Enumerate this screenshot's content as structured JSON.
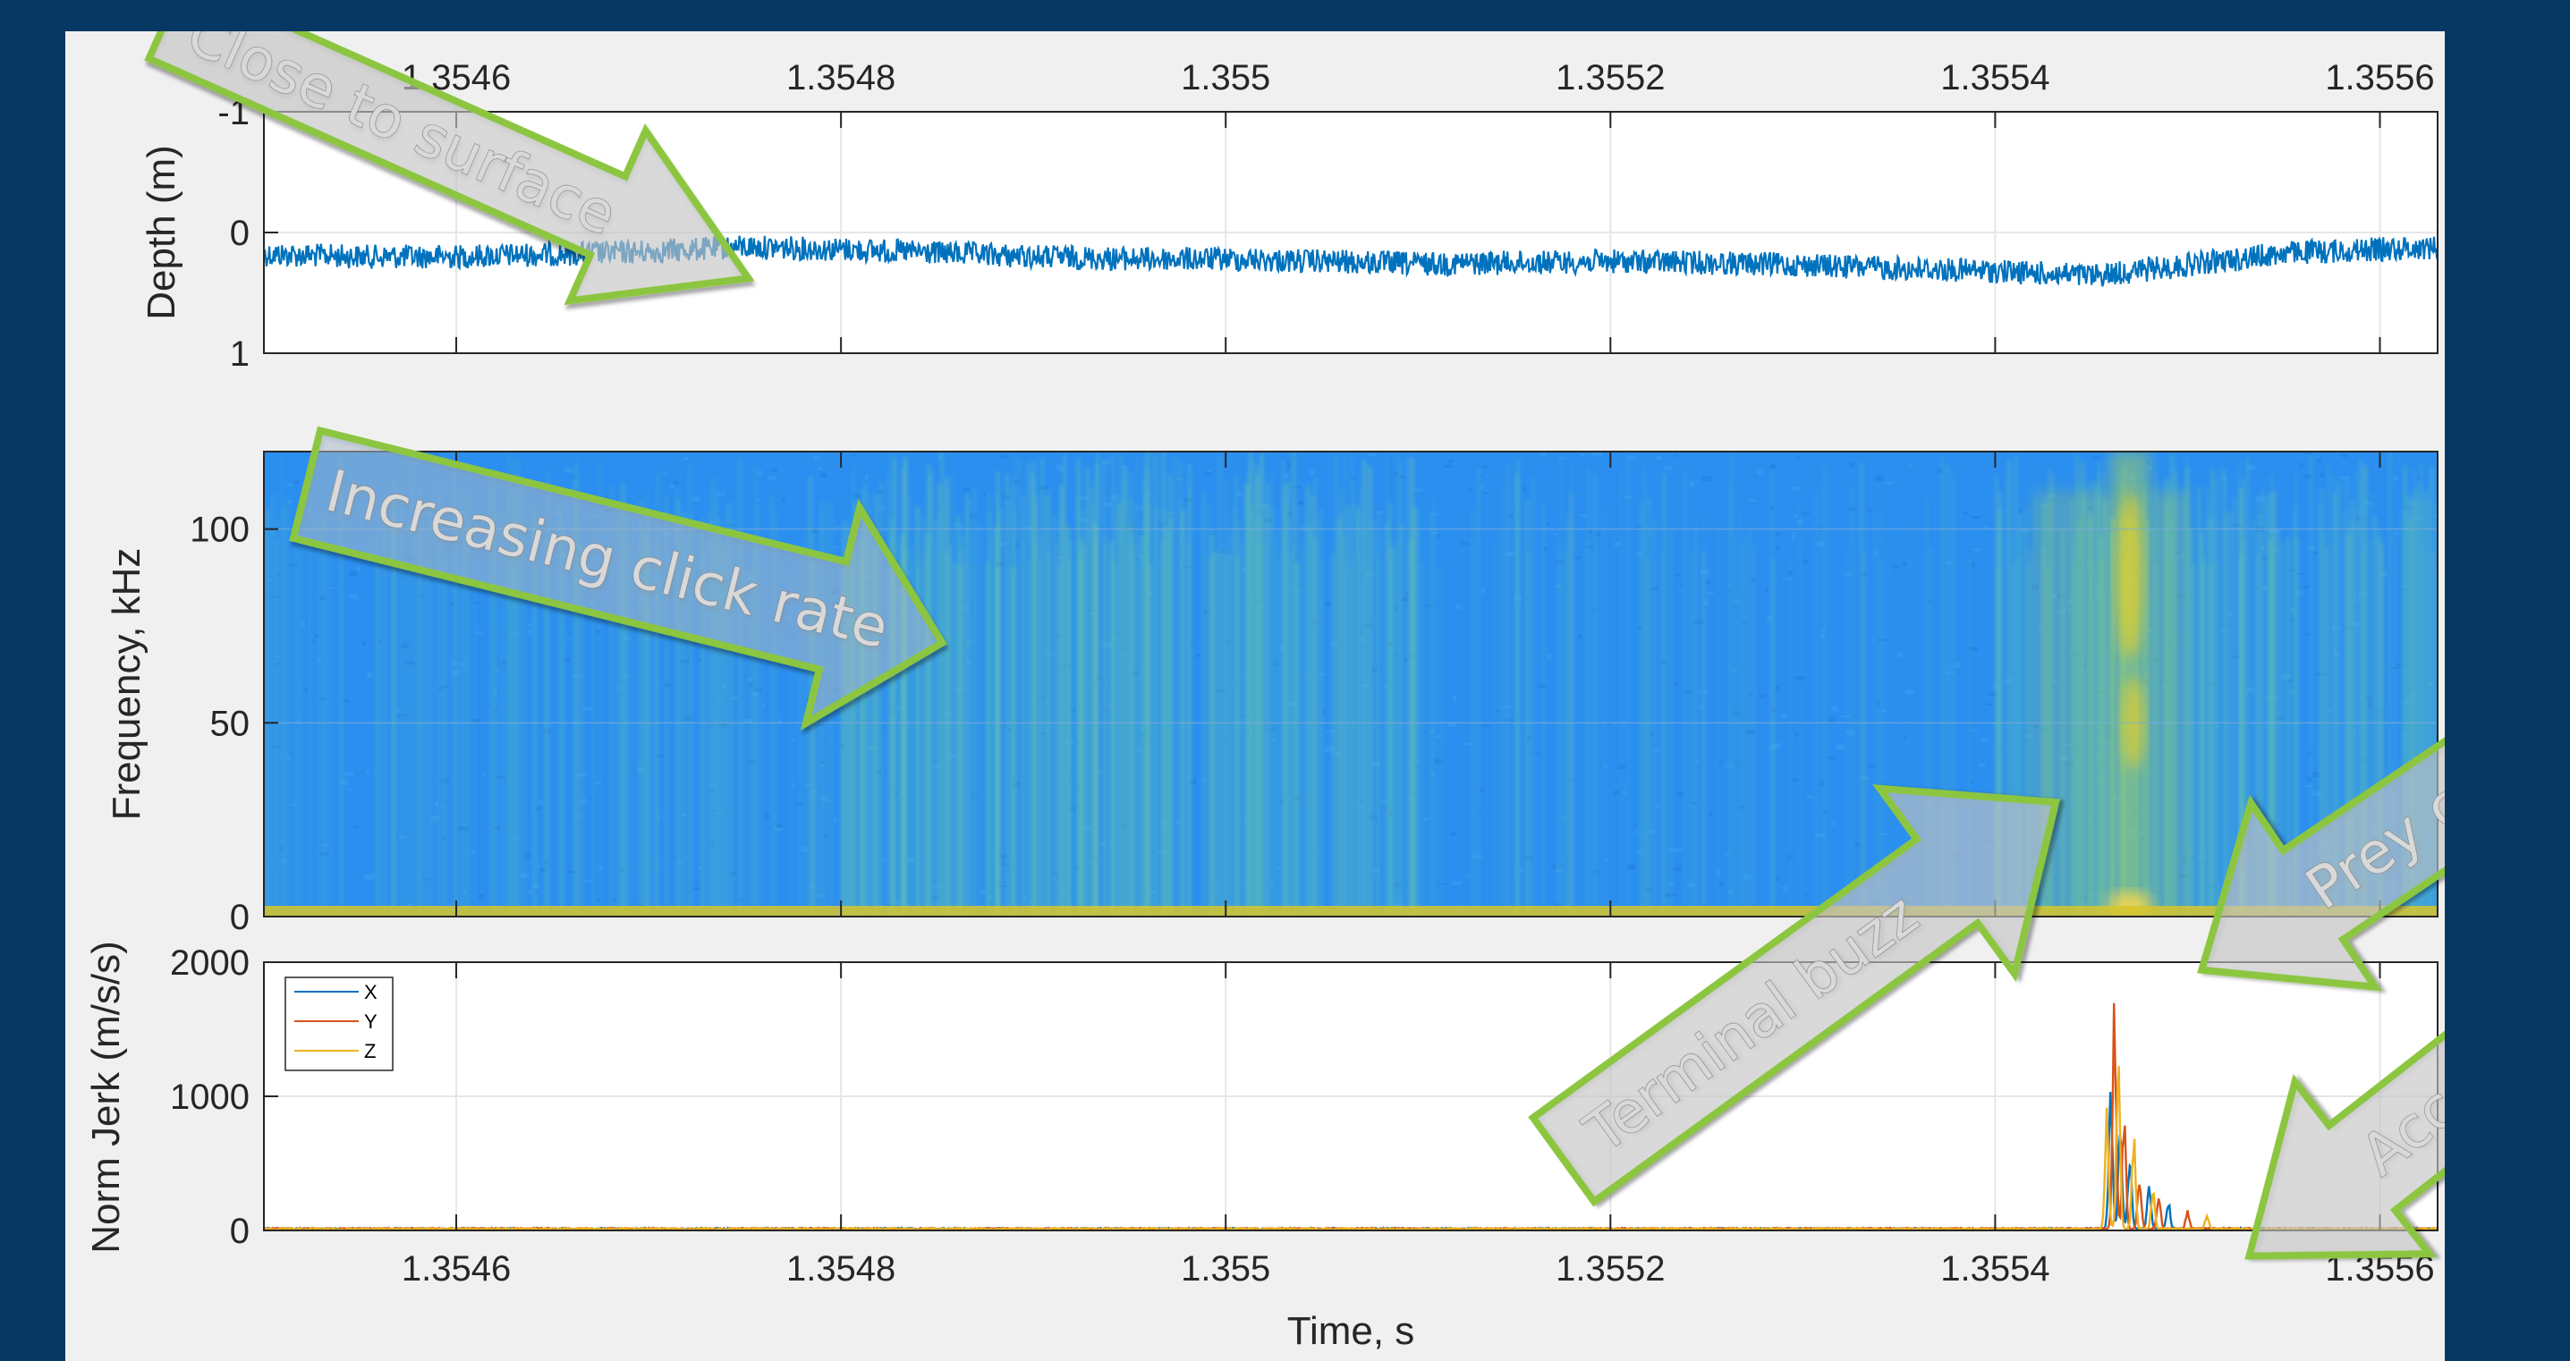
{
  "colors": {
    "background": "#073763",
    "figure": "#f0f0f0",
    "axes_bg": "#ffffff",
    "grid": "#e6e6e6",
    "axis": "#262626",
    "depth_line": "#0072bd",
    "series_x": "#0072bd",
    "series_y": "#d95319",
    "series_z": "#edb120",
    "spec_low": "#1e90f0",
    "spec_high": "#f2d21a",
    "annotation_stroke": "#8cc63f"
  },
  "chart_data": [
    {
      "id": "depth",
      "type": "line",
      "title": "",
      "xlabel": "",
      "ylabel": "Depth (m)",
      "xlim": [
        1.3545,
        1.35563
      ],
      "ylim": [
        -1,
        1
      ],
      "y_reversed": true,
      "x_ticks": [
        1.3546,
        1.3548,
        1.355,
        1.3552,
        1.3554,
        1.3556
      ],
      "x_tick_labels": [
        "1.3546",
        "1.3548",
        "1.355",
        "1.3552",
        "1.3554",
        "1.3556"
      ],
      "x_ticks_on_top": true,
      "y_ticks": [
        -1,
        0,
        1
      ],
      "y_tick_labels": [
        "-1",
        "0",
        "1"
      ],
      "grid": true,
      "series": [
        {
          "x": [
            1.3545,
            1.35455,
            1.3546,
            1.35465,
            1.3547,
            1.35475,
            1.3548,
            1.35485,
            1.3549,
            1.35495,
            1.355,
            1.35505,
            1.3551,
            1.35515,
            1.3552,
            1.35525,
            1.3553,
            1.35535,
            1.3554,
            1.35545,
            1.3555,
            1.35555,
            1.35563
          ],
          "y": [
            0.18,
            0.2,
            0.2,
            0.18,
            0.16,
            0.12,
            0.14,
            0.17,
            0.2,
            0.22,
            0.22,
            0.24,
            0.26,
            0.25,
            0.24,
            0.25,
            0.27,
            0.3,
            0.32,
            0.36,
            0.27,
            0.17,
            0.12
          ],
          "noise": 0.1
        }
      ]
    },
    {
      "id": "spectrogram",
      "type": "heatmap",
      "title": "",
      "xlabel": "",
      "ylabel": "Frequency, kHz",
      "xlim": [
        1.3545,
        1.35563
      ],
      "ylim": [
        0,
        120
      ],
      "y_ticks": [
        0,
        50,
        100
      ],
      "y_tick_labels": [
        "0",
        "50",
        "100"
      ],
      "colormap": "parula",
      "click_density": [
        {
          "x0": 1.3545,
          "x1": 1.3548,
          "level": 0.25
        },
        {
          "x0": 1.3548,
          "x1": 1.35502,
          "level": 0.6
        },
        {
          "x0": 1.35502,
          "x1": 1.3551,
          "level": 0.5
        },
        {
          "x0": 1.3551,
          "x1": 1.35523,
          "level": 0.18
        },
        {
          "x0": 1.35523,
          "x1": 1.3554,
          "level": 0.12
        },
        {
          "x0": 1.3554,
          "x1": 1.35563,
          "level": 0.5
        }
      ],
      "broadband_events": [
        {
          "x0": 1.35546,
          "x1": 1.35548,
          "f_max": 120,
          "intensity": 1.0
        },
        {
          "x0": 1.35542,
          "x1": 1.35546,
          "f_max": 110,
          "intensity": 0.5
        },
        {
          "x0": 1.35548,
          "x1": 1.3555,
          "f_max": 110,
          "intensity": 0.55
        }
      ]
    },
    {
      "id": "jerk",
      "type": "line",
      "title": "",
      "xlabel": "Time, s",
      "ylabel": "Norm Jerk (m/s/s)",
      "xlim": [
        1.3545,
        1.35563
      ],
      "ylim": [
        0,
        2000
      ],
      "x_ticks": [
        1.3546,
        1.3548,
        1.355,
        1.3552,
        1.3554,
        1.3556
      ],
      "x_tick_labels": [
        "1.3546",
        "1.3548",
        "1.355",
        "1.3552",
        "1.3554",
        "1.3556"
      ],
      "y_ticks": [
        0,
        1000,
        2000
      ],
      "y_tick_labels": [
        "0",
        "1000",
        "2000"
      ],
      "grid": true,
      "legend": "top-left",
      "series": [
        {
          "name": "X",
          "peaks": [
            {
              "x": 1.35546,
              "y": 1050
            },
            {
              "x": 1.355465,
              "y": 820
            },
            {
              "x": 1.35547,
              "y": 620
            },
            {
              "x": 1.35548,
              "y": 360
            },
            {
              "x": 1.35549,
              "y": 210
            }
          ]
        },
        {
          "name": "Y",
          "peaks": [
            {
              "x": 1.355462,
              "y": 1780
            },
            {
              "x": 1.355467,
              "y": 880
            },
            {
              "x": 1.355475,
              "y": 420
            },
            {
              "x": 1.355485,
              "y": 270
            },
            {
              "x": 1.3555,
              "y": 140
            }
          ]
        },
        {
          "name": "Z",
          "peaks": [
            {
              "x": 1.355458,
              "y": 950
            },
            {
              "x": 1.355464,
              "y": 1320
            },
            {
              "x": 1.355472,
              "y": 740
            },
            {
              "x": 1.355482,
              "y": 330
            },
            {
              "x": 1.35551,
              "y": 110
            }
          ]
        }
      ]
    }
  ],
  "annotations": [
    {
      "id": "close-to-surface",
      "text": "Close to surface"
    },
    {
      "id": "increasing-click-rate",
      "text": "Increasing click rate"
    },
    {
      "id": "terminal-buzz",
      "text": "Terminal buzz"
    },
    {
      "id": "prey-crunch",
      "text": "Prey crunch"
    },
    {
      "id": "accel-jerk",
      "text": "Accel. jerk"
    }
  ]
}
